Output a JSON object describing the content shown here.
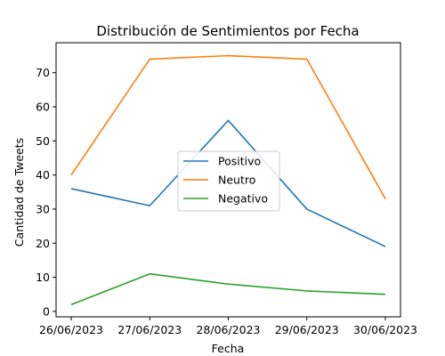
{
  "chart_data": {
    "type": "line",
    "title": "Distribución de Sentimientos por Fecha",
    "xlabel": "Fecha",
    "ylabel": "Cantidad de Tweets",
    "categories": [
      "26/06/2023",
      "27/06/2023",
      "28/06/2023",
      "29/06/2023",
      "30/06/2023"
    ],
    "ylim": [
      -1.6,
      78.8
    ],
    "yticks": [
      0,
      10,
      20,
      30,
      40,
      50,
      60,
      70
    ],
    "grid": false,
    "legend_position": "center",
    "series": [
      {
        "name": "Positivo",
        "color": "#1f77b4",
        "values": [
          36,
          31,
          56,
          30,
          19
        ]
      },
      {
        "name": "Neutro",
        "color": "#ff7f0e",
        "values": [
          40,
          74,
          75,
          74,
          33
        ]
      },
      {
        "name": "Negativo",
        "color": "#2ca02c",
        "values": [
          2,
          11,
          8,
          6,
          5
        ]
      }
    ]
  }
}
